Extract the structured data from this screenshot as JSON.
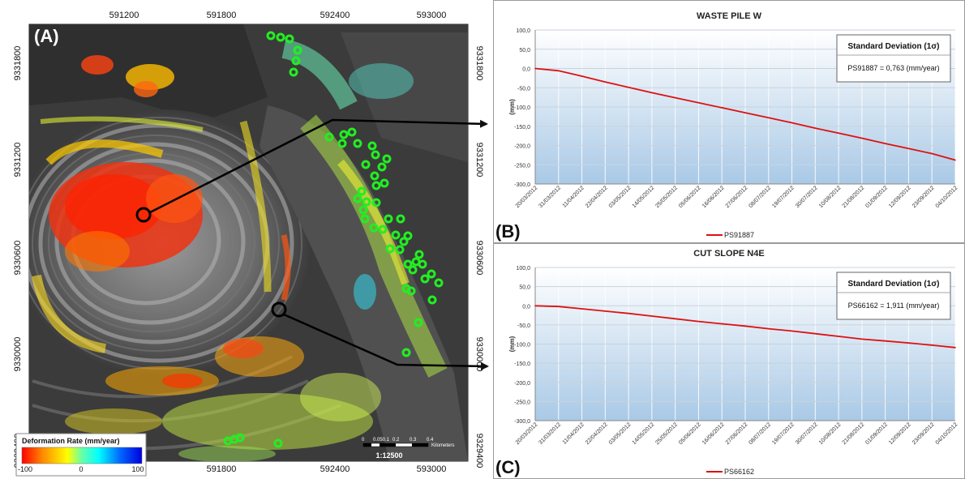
{
  "map": {
    "panel_label": "(A)",
    "x_ticks_top": [
      "591200",
      "591800",
      "592400",
      "593000"
    ],
    "x_ticks_bottom": [
      "591800",
      "592400",
      "593000"
    ],
    "y_ticks_left": [
      "9331800",
      "9331200",
      "9330600",
      "9330000",
      "9329400"
    ],
    "y_ticks_right": [
      "9331800",
      "9331200",
      "9330600",
      "9330000",
      "9329400"
    ],
    "legend": {
      "title": "Deformation Rate (mm/year)",
      "min": "-100",
      "mid": "0",
      "max": "100",
      "colors": [
        "#ff0000",
        "#ff8800",
        "#ffff00",
        "#66ffaa",
        "#00ffff",
        "#0066ff",
        "#0000dd"
      ]
    },
    "scale": {
      "labels": [
        "0",
        "0.050.1",
        "0.2",
        "0.3",
        "0.4"
      ],
      "unit": "Kilometers",
      "ratio": "1:12500"
    },
    "colors": {
      "marker": "#22ee22",
      "pointer": "#000000"
    }
  },
  "chart_data": [
    {
      "type": "line",
      "panel_label": "(B)",
      "title": "WASTE PILE W",
      "ylabel": "(mm)",
      "ylim": [
        -300,
        100
      ],
      "y_ticks": [
        "100,0",
        "50,0",
        "0,0",
        "-50,0",
        "-100,0",
        "-150,0",
        "-200,0",
        "-250,0",
        "-300,0"
      ],
      "categories": [
        "20/03/2012",
        "31/03/2012",
        "11/04/2012",
        "22/04/2012",
        "03/05/2012",
        "14/05/2012",
        "25/05/2012",
        "05/06/2012",
        "16/06/2012",
        "27/06/2012",
        "08/07/2012",
        "19/07/2012",
        "30/07/2012",
        "10/08/2012",
        "21/08/2012",
        "01/09/2012",
        "12/09/2012",
        "23/09/2012",
        "04/10/2012"
      ],
      "series": [
        {
          "name": "PS91887",
          "color": "#dd1111",
          "values": [
            0,
            -6,
            -20,
            -35,
            -49,
            -63,
            -76,
            -89,
            -102,
            -115,
            -128,
            -141,
            -155,
            -168,
            -181,
            -195,
            -208,
            -221,
            -238
          ]
        }
      ],
      "annotation": {
        "title": "Standard Deviation (1σ)",
        "text": "PS91887 = 0,763 (mm/year)"
      },
      "legend_position": "bottom"
    },
    {
      "type": "line",
      "panel_label": "(C)",
      "title": "CUT SLOPE N4E",
      "ylabel": "(mm)",
      "ylim": [
        -300,
        100
      ],
      "y_ticks": [
        "100,0",
        "50,0",
        "0,0",
        "-50,0",
        "-100,0",
        "-150,0",
        "-200,0",
        "-250,0",
        "-300,0"
      ],
      "categories": [
        "20/03/2012",
        "31/03/2012",
        "11/04/2012",
        "22/04/2012",
        "03/05/2012",
        "14/05/2012",
        "25/05/2012",
        "05/06/2012",
        "16/06/2012",
        "27/06/2012",
        "08/07/2012",
        "19/07/2012",
        "30/07/2012",
        "10/08/2012",
        "21/08/2012",
        "01/09/2012",
        "12/09/2012",
        "23/09/2012",
        "04/10/2012"
      ],
      "series": [
        {
          "name": "PS66162",
          "color": "#dd1111",
          "values": [
            0,
            -2,
            -8,
            -14,
            -20,
            -27,
            -34,
            -41,
            -47,
            -53,
            -60,
            -66,
            -73,
            -80,
            -87,
            -92,
            -97,
            -103,
            -109
          ]
        }
      ],
      "annotation": {
        "title": "Standard Deviation (1σ)",
        "text": "PS66162 = 1,911 (mm/year)"
      },
      "legend_position": "bottom"
    }
  ]
}
